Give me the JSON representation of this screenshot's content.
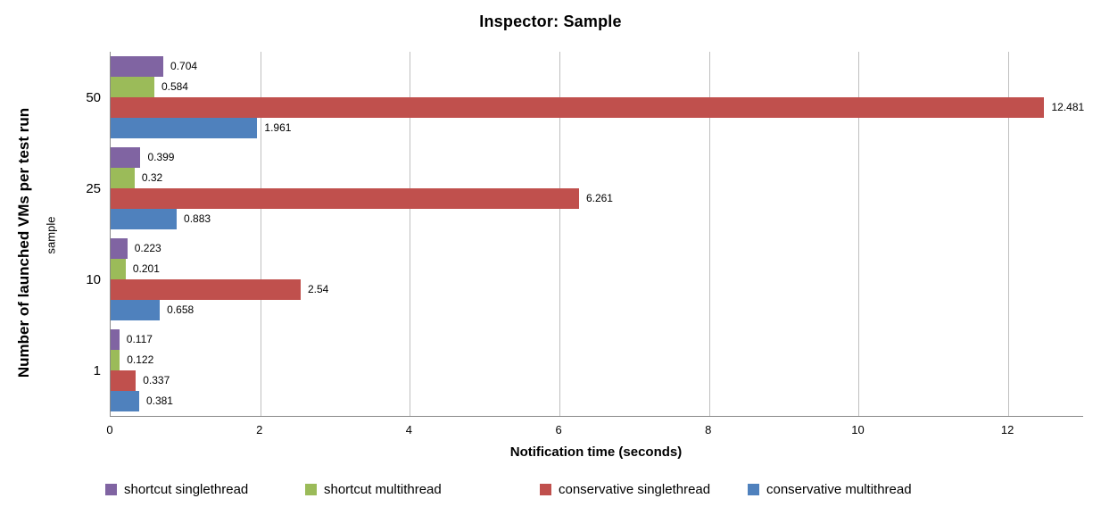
{
  "title": "Inspector: Sample",
  "chart_data": {
    "type": "bar",
    "orientation": "horizontal",
    "title": "Inspector: Sample",
    "xlabel": "Notification time (seconds)",
    "ylabel": "Number of launched VMs per test run",
    "ylabel_secondary": "sample",
    "categories": [
      "50",
      "25",
      "10",
      "1"
    ],
    "series": [
      {
        "name": "shortcut singlethread",
        "color": "#8064A2",
        "values": [
          0.704,
          0.399,
          0.223,
          0.117
        ],
        "labels": [
          "0.704",
          "0.399",
          "0.223",
          "0.117"
        ]
      },
      {
        "name": "shortcut multithread",
        "color": "#9BBB59",
        "values": [
          0.584,
          0.32,
          0.201,
          0.122
        ],
        "labels": [
          "0.584",
          "0.32",
          "0.201",
          "0.122"
        ]
      },
      {
        "name": "conservative singlethread",
        "color": "#C0504D",
        "values": [
          12.481,
          6.261,
          2.54,
          0.337
        ],
        "labels": [
          "12.481",
          "6.261",
          "2.54",
          "0.337"
        ]
      },
      {
        "name": "conservative multithread",
        "color": "#4F81BD",
        "values": [
          1.961,
          0.883,
          0.658,
          0.381
        ],
        "labels": [
          "1.961",
          "0.883",
          "0.658",
          "0.381"
        ]
      }
    ],
    "x_ticks": [
      "0",
      "2",
      "4",
      "6",
      "8",
      "10",
      "12"
    ],
    "x_tick_values": [
      0,
      2,
      4,
      6,
      8,
      10,
      12
    ],
    "xlim": [
      0,
      13
    ],
    "grid": true,
    "legend_position": "bottom"
  },
  "colors": {
    "gridline": "#BFBFBF",
    "axis_line": "#898989",
    "text": "#000000"
  }
}
